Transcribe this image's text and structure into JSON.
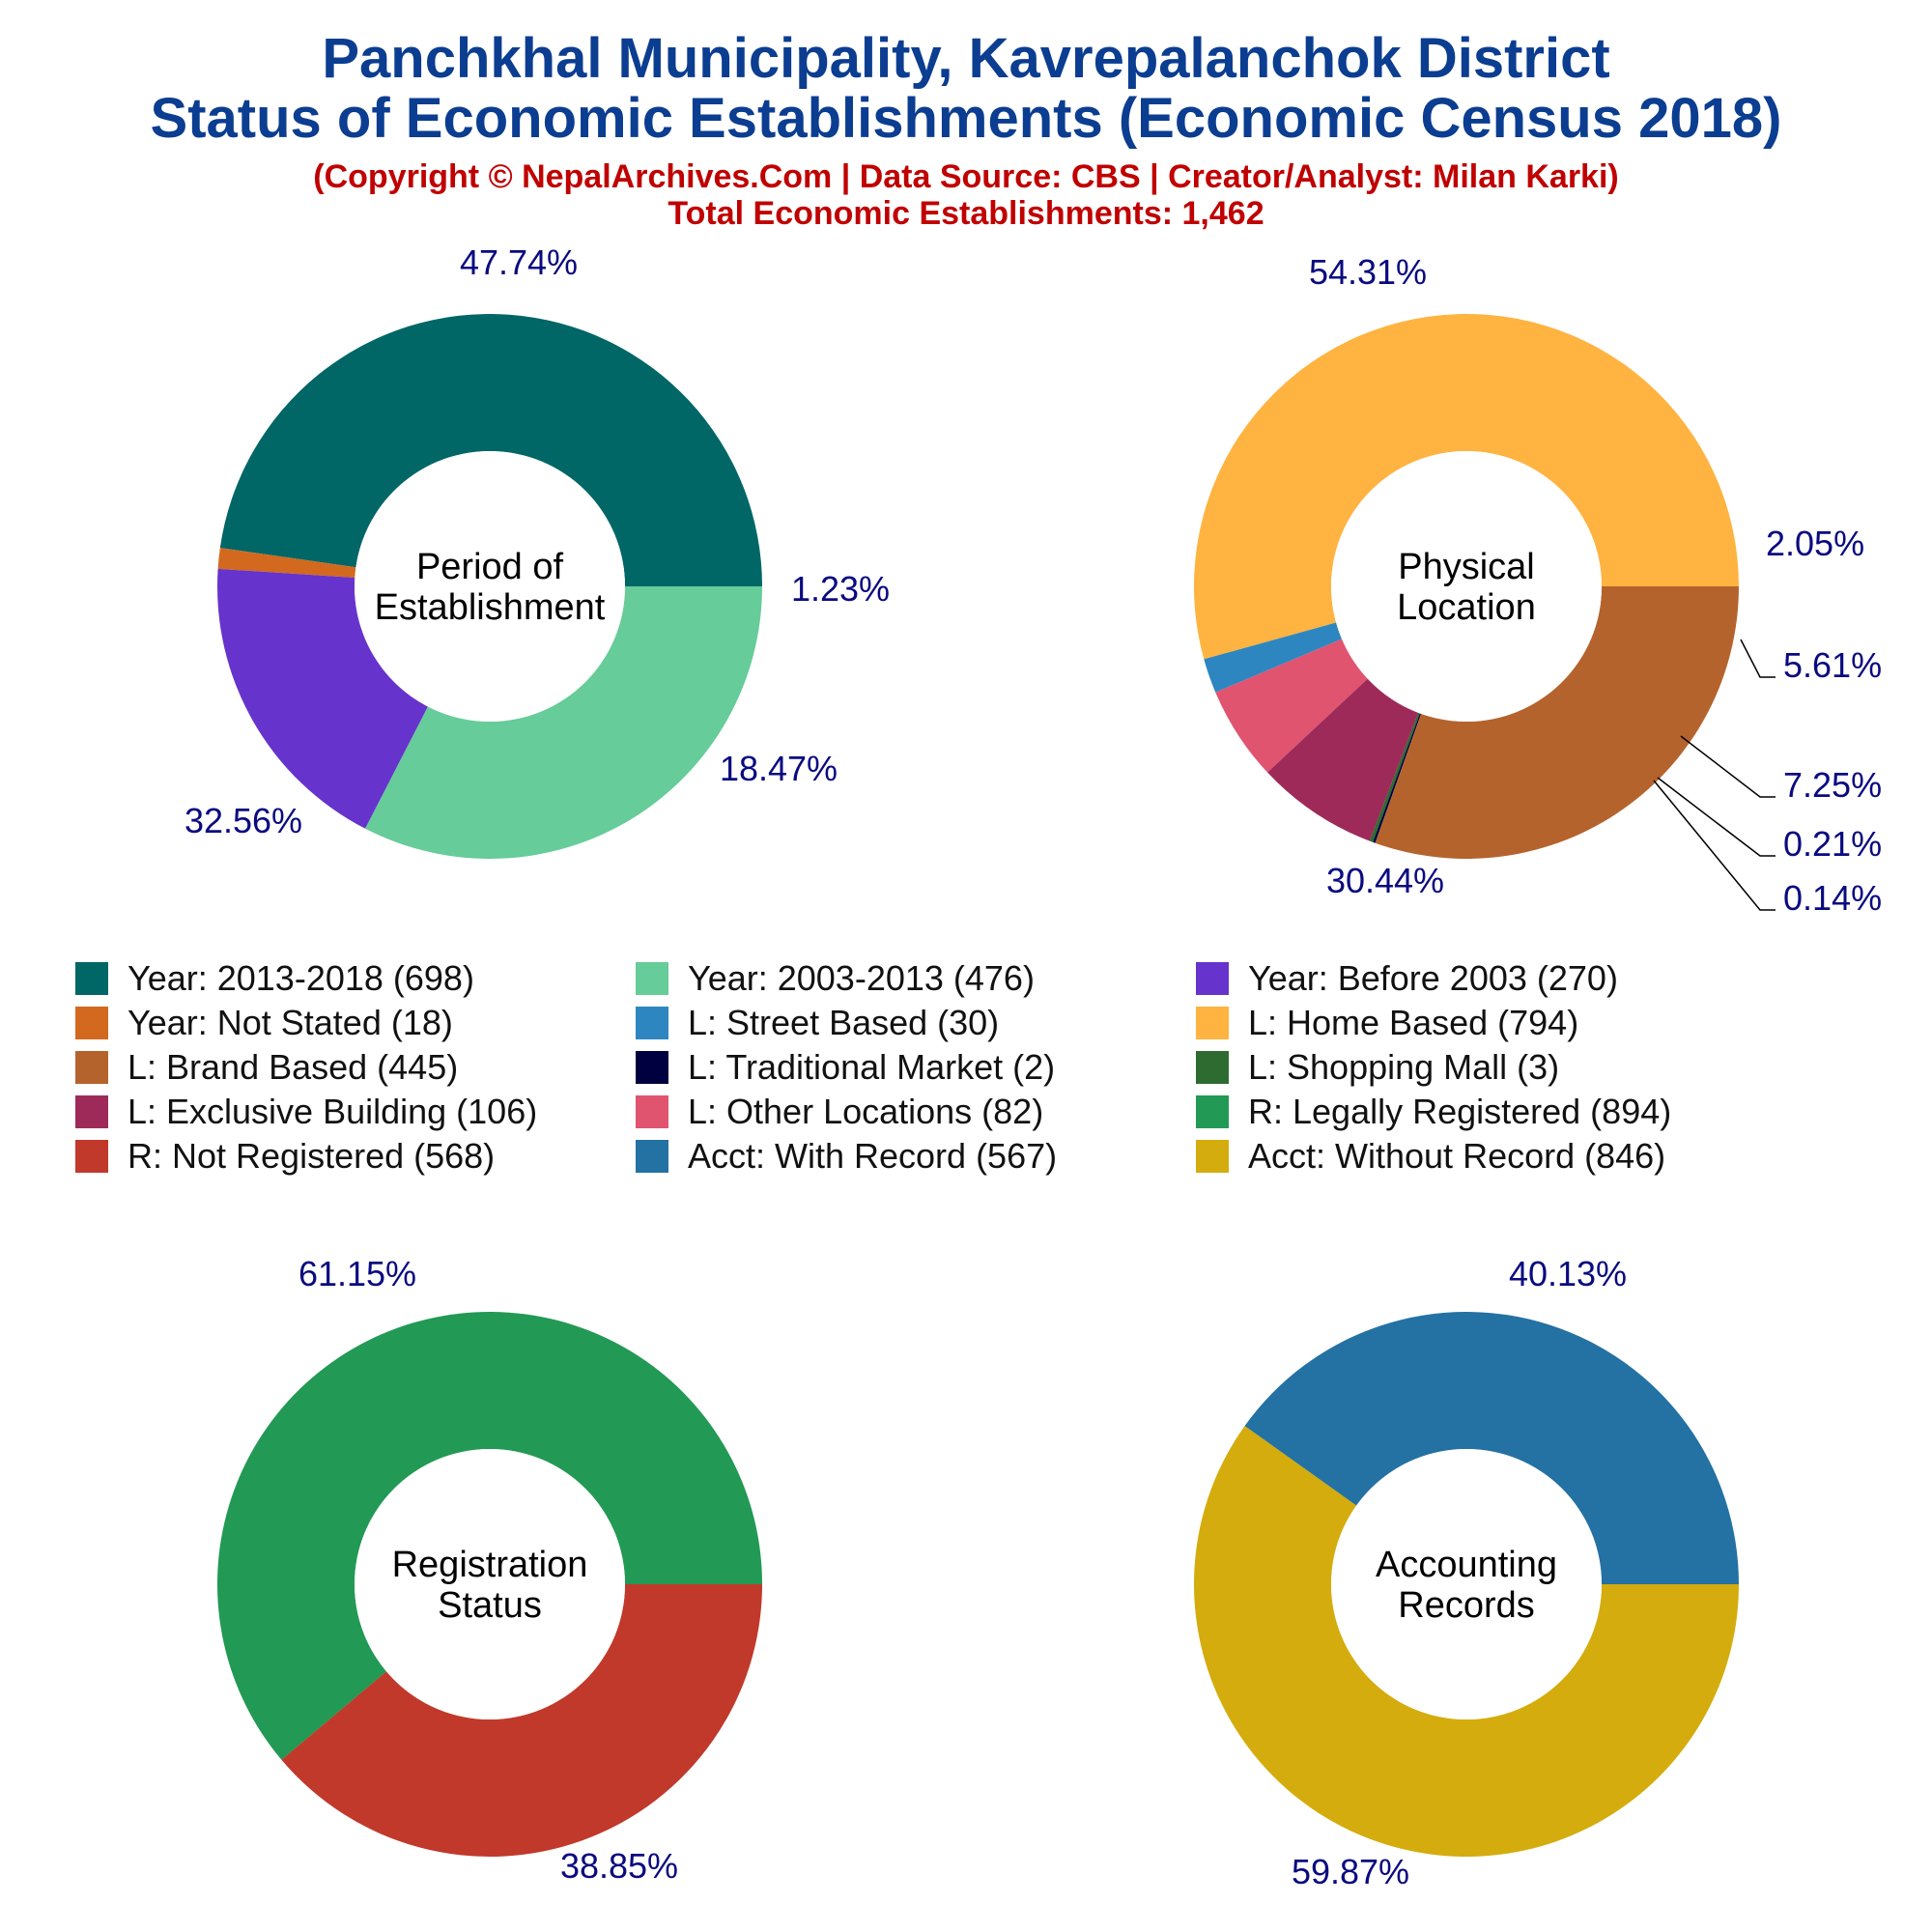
{
  "header": {
    "title_line1": "Panchkhal Municipality, Kavrepalanchok District",
    "title_line2": "Status of Economic Establishments (Economic Census 2018)",
    "subtitle_line1": "(Copyright © NepalArchives.Com | Data Source: CBS | Creator/Analyst: Milan Karki)",
    "subtitle_line2": "Total Economic Establishments: 1,462"
  },
  "chart_data": [
    {
      "type": "pie",
      "center_label": [
        "Period of",
        "Establishment"
      ],
      "categories": [
        "Year: 2013-2018",
        "Year: Not Stated",
        "Year: Before 2003",
        "Year: 2003-2013"
      ],
      "values": [
        698,
        18,
        270,
        476
      ],
      "percent_labels": [
        "47.74%",
        "1.23%",
        "18.47%",
        "32.56%"
      ],
      "colors": [
        "#006666",
        "#d2691e",
        "#6633cc",
        "#66cc99"
      ]
    },
    {
      "type": "pie",
      "center_label": [
        "Physical",
        "Location"
      ],
      "categories": [
        "L: Home Based",
        "L: Street Based",
        "L: Other Locations",
        "L: Exclusive Building",
        "L: Shopping Mall",
        "L: Traditional Market",
        "L: Brand Based"
      ],
      "values": [
        794,
        30,
        82,
        106,
        3,
        2,
        445
      ],
      "percent_labels": [
        "54.31%",
        "2.05%",
        "5.61%",
        "7.25%",
        "0.21%",
        "0.14%",
        "30.44%"
      ],
      "colors": [
        "#ffb340",
        "#2e86c1",
        "#e05470",
        "#9e2a5a",
        "#2e6b30",
        "#000040",
        "#b5632d"
      ]
    },
    {
      "type": "pie",
      "center_label": [
        "Registration",
        "Status"
      ],
      "categories": [
        "R: Legally Registered",
        "R: Not Registered"
      ],
      "values": [
        894,
        568
      ],
      "percent_labels": [
        "61.15%",
        "38.85%"
      ],
      "colors": [
        "#229954",
        "#c0392b"
      ]
    },
    {
      "type": "pie",
      "center_label": [
        "Accounting",
        "Records"
      ],
      "categories": [
        "Acct: With Record",
        "Acct: Without Record"
      ],
      "values": [
        567,
        846
      ],
      "percent_labels": [
        "40.13%",
        "59.87%"
      ],
      "colors": [
        "#2471a3",
        "#d4ac0d"
      ]
    }
  ],
  "legend": [
    {
      "label": "Year: 2013-2018 (698)",
      "color": "#006666"
    },
    {
      "label": "Year: 2003-2013 (476)",
      "color": "#66cc99"
    },
    {
      "label": "Year: Before 2003 (270)",
      "color": "#6633cc"
    },
    {
      "label": "Year: Not Stated (18)",
      "color": "#d2691e"
    },
    {
      "label": "L: Street Based (30)",
      "color": "#2e86c1"
    },
    {
      "label": "L: Home Based (794)",
      "color": "#ffb340"
    },
    {
      "label": "L: Brand Based (445)",
      "color": "#b5632d"
    },
    {
      "label": "L: Traditional Market (2)",
      "color": "#000040"
    },
    {
      "label": "L: Shopping Mall (3)",
      "color": "#2e6b30"
    },
    {
      "label": "L: Exclusive Building (106)",
      "color": "#9e2a5a"
    },
    {
      "label": "L: Other Locations (82)",
      "color": "#e05470"
    },
    {
      "label": "R: Legally Registered (894)",
      "color": "#229954"
    },
    {
      "label": "R: Not Registered (568)",
      "color": "#c0392b"
    },
    {
      "label": "Acct: With Record (567)",
      "color": "#2471a3"
    },
    {
      "label": "Acct: Without Record (846)",
      "color": "#d4ac0d"
    }
  ]
}
